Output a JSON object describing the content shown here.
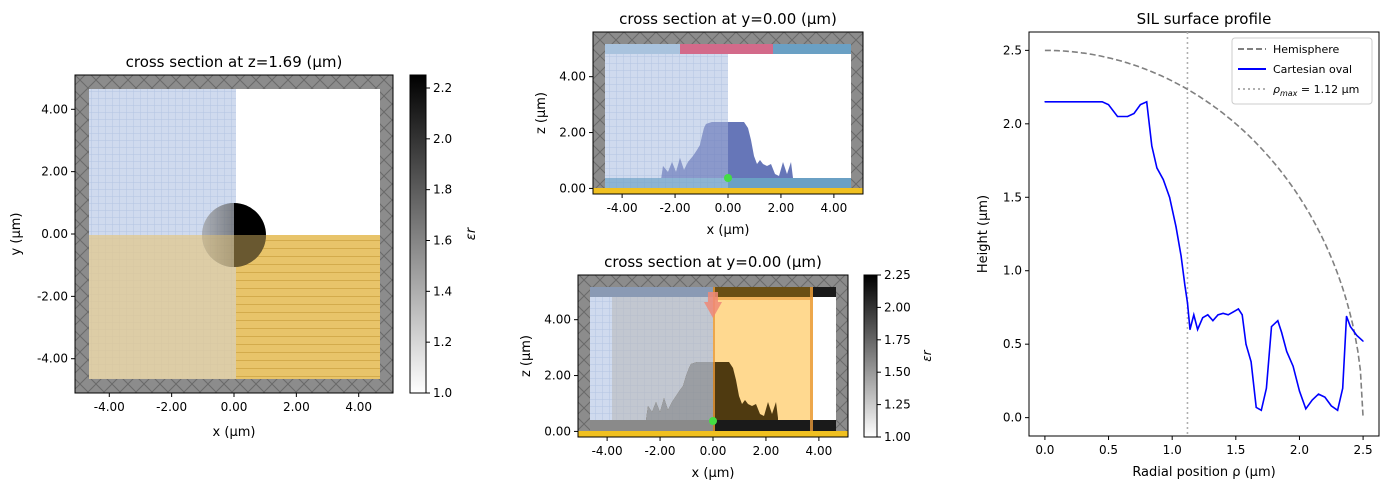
{
  "panel_a": {
    "title": "cross section at z=1.69 (μm)",
    "xlabel": "x (μm)",
    "ylabel": "y (μm)",
    "xticks": [
      "-4.00",
      "-2.00",
      "0.00",
      "2.00",
      "4.00"
    ],
    "yticks": [
      "4.00",
      "2.00",
      "0.00",
      "-2.00",
      "-4.00"
    ],
    "colorbar": {
      "label": "εr",
      "ticks": [
        "2.2",
        "2.0",
        "1.8",
        "1.6",
        "1.4",
        "1.2",
        "1.0"
      ]
    }
  },
  "panel_b": {
    "title": "cross section at y=0.00 (μm)",
    "xlabel": "x (μm)",
    "ylabel": "z (μm)",
    "xticks": [
      "-4.00",
      "-2.00",
      "0.00",
      "2.00",
      "4.00"
    ],
    "yticks": [
      "4.00",
      "2.00",
      "0.00"
    ]
  },
  "panel_c": {
    "title": "cross section at y=0.00 (μm)",
    "xlabel": "x (μm)",
    "ylabel": "z (μm)",
    "xticks": [
      "-4.00",
      "-2.00",
      "0.00",
      "2.00",
      "4.00"
    ],
    "yticks": [
      "4.00",
      "2.00",
      "0.00"
    ],
    "colorbar": {
      "label": "εr",
      "ticks": [
        "2.25",
        "2.00",
        "1.75",
        "1.50",
        "1.25",
        "1.00"
      ]
    }
  },
  "chart_data": {
    "type": "line",
    "title": "SIL surface profile",
    "xlabel": "Radial position ρ (μm)",
    "ylabel": "Height (μm)",
    "xlim": [
      -0.125,
      2.625
    ],
    "ylim": [
      -0.125,
      2.625
    ],
    "xticks": [
      "0.0",
      "0.5",
      "1.0",
      "1.5",
      "2.0",
      "2.5"
    ],
    "yticks": [
      "0.0",
      "0.5",
      "1.0",
      "1.5",
      "2.0",
      "2.5"
    ],
    "legend_position": "top-right",
    "colors": {
      "hemisphere": "#808080",
      "oval": "#0000ff",
      "rho_max": "#b0b0b0"
    },
    "series": [
      {
        "name": "Hemisphere",
        "style": "dashed",
        "function": "sqrt(2.5^2 - x^2)",
        "x_range": [
          0,
          2.5
        ]
      },
      {
        "name": "Cartesian oval",
        "style": "solid",
        "x": [
          0.0,
          0.1,
          0.2,
          0.3,
          0.4,
          0.45,
          0.5,
          0.57,
          0.65,
          0.7,
          0.75,
          0.8,
          0.84,
          0.88,
          0.93,
          0.98,
          1.03,
          1.07,
          1.1,
          1.12,
          1.14,
          1.17,
          1.2,
          1.24,
          1.28,
          1.32,
          1.36,
          1.4,
          1.44,
          1.48,
          1.52,
          1.55,
          1.58,
          1.62,
          1.66,
          1.7,
          1.74,
          1.78,
          1.83,
          1.86,
          1.9,
          1.95,
          2.0,
          2.05,
          2.1,
          2.15,
          2.2,
          2.25,
          2.3,
          2.34,
          2.37,
          2.4,
          2.45,
          2.5
        ],
        "y": [
          2.15,
          2.15,
          2.15,
          2.15,
          2.15,
          2.15,
          2.13,
          2.05,
          2.05,
          2.07,
          2.13,
          2.15,
          1.85,
          1.7,
          1.62,
          1.5,
          1.3,
          1.1,
          0.9,
          0.78,
          0.6,
          0.7,
          0.6,
          0.68,
          0.7,
          0.66,
          0.7,
          0.71,
          0.7,
          0.72,
          0.74,
          0.7,
          0.5,
          0.38,
          0.07,
          0.05,
          0.2,
          0.62,
          0.66,
          0.58,
          0.45,
          0.35,
          0.18,
          0.06,
          0.12,
          0.16,
          0.14,
          0.08,
          0.05,
          0.2,
          0.69,
          0.62,
          0.56,
          0.52
        ]
      },
      {
        "name": "ρmax = 1.12 μm",
        "style": "dotted",
        "x_value": 1.12
      }
    ],
    "legend": [
      {
        "label": "Hemisphere",
        "key": "hemisphere"
      },
      {
        "label": "Cartesian oval",
        "key": "oval"
      },
      {
        "label_main": "ρ",
        "label_sub": "max",
        "label_rest": " = 1.12 μm",
        "key": "rho_max"
      }
    ]
  }
}
